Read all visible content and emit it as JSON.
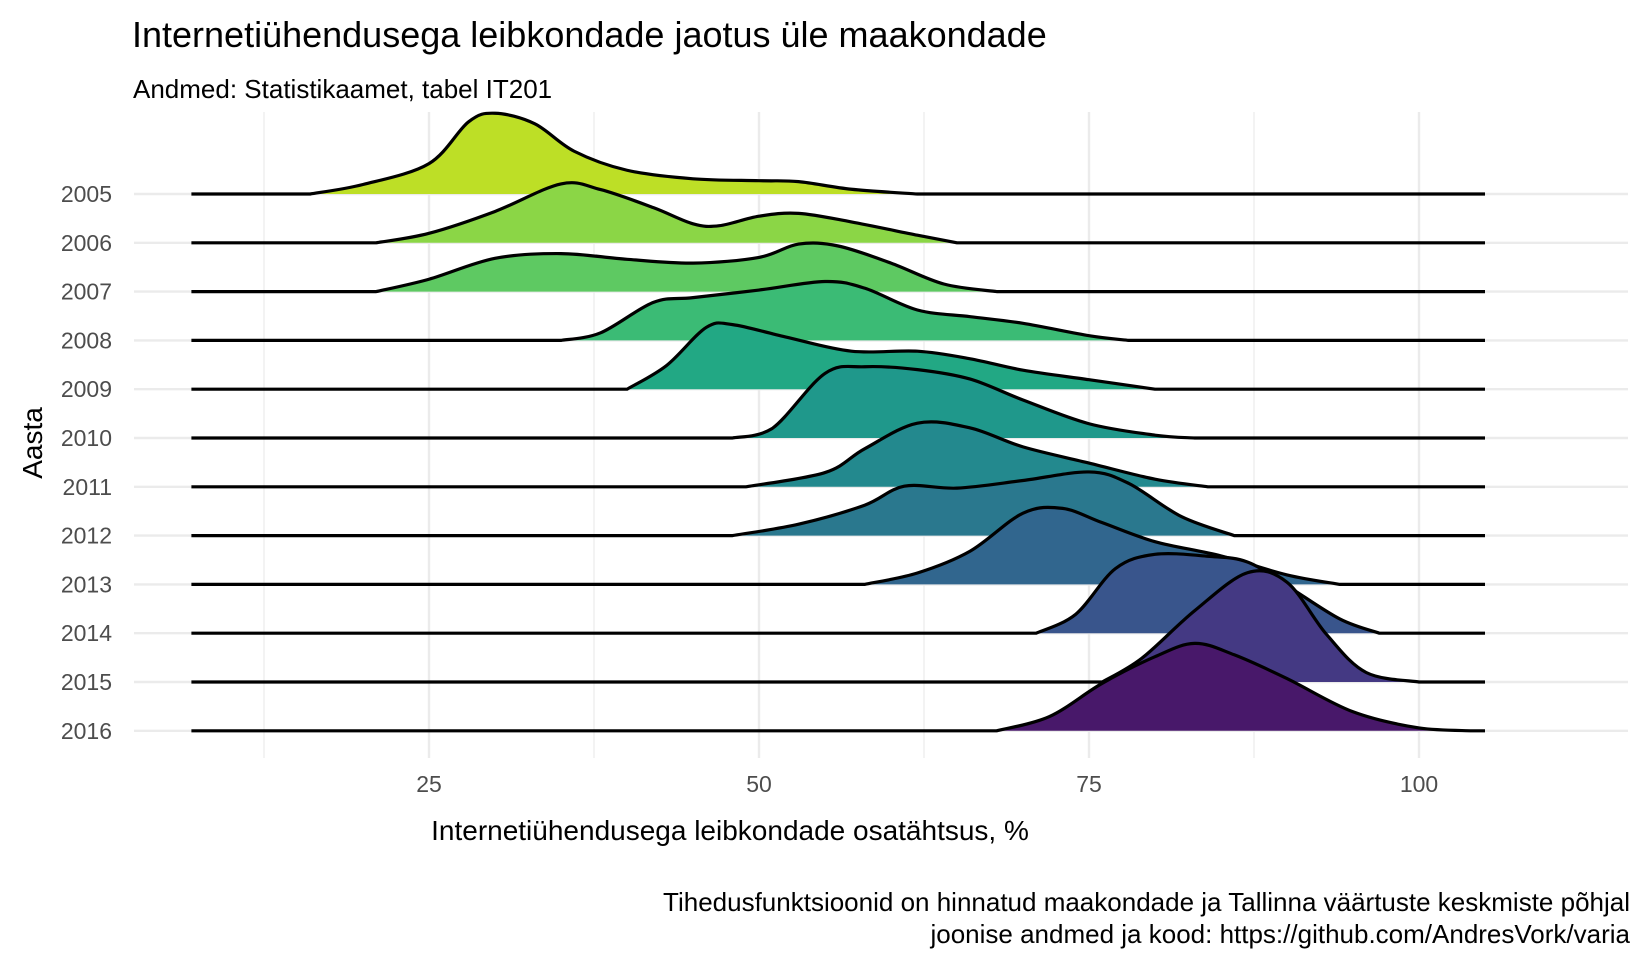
{
  "chart_data": {
    "type": "ridgeline",
    "title": "Internetiühendusega leibkondade jaotus üle maakondade",
    "subtitle": "Andmed: Statistikaamet, tabel IT201",
    "xlabel": "Internetiühendusega leibkondade osatähtsus, %",
    "ylabel": "Aasta",
    "caption": [
      "Tihedusfunktsioonid on hinnatud maakondade ja Tallinna väärtuste keskmiste põhjal",
      "joonise andmed ja kood: https://github.com/AndresVork/varia"
    ],
    "xlim": [
      7,
      105
    ],
    "x_ticks": [
      25,
      50,
      75,
      100
    ],
    "grid": true,
    "legend": "none",
    "categories": [
      "2005",
      "2006",
      "2007",
      "2008",
      "2009",
      "2010",
      "2011",
      "2012",
      "2013",
      "2014",
      "2015",
      "2016"
    ],
    "series": [
      {
        "year": "2005",
        "color": "#bddf26",
        "points": [
          [
            16,
            0
          ],
          [
            20,
            0.1
          ],
          [
            25,
            0.32
          ],
          [
            28,
            0.76
          ],
          [
            30,
            0.85
          ],
          [
            33,
            0.74
          ],
          [
            36,
            0.45
          ],
          [
            40,
            0.25
          ],
          [
            45,
            0.16
          ],
          [
            50,
            0.14
          ],
          [
            53,
            0.13
          ],
          [
            57,
            0.05
          ],
          [
            62,
            0
          ]
        ]
      },
      {
        "year": "2006",
        "color": "#8bd646",
        "points": [
          [
            21,
            0
          ],
          [
            25,
            0.1
          ],
          [
            30,
            0.33
          ],
          [
            35,
            0.62
          ],
          [
            38,
            0.56
          ],
          [
            42,
            0.37
          ],
          [
            45,
            0.2
          ],
          [
            47,
            0.18
          ],
          [
            50,
            0.28
          ],
          [
            53,
            0.31
          ],
          [
            57,
            0.22
          ],
          [
            62,
            0.08
          ],
          [
            65,
            0
          ]
        ]
      },
      {
        "year": "2007",
        "color": "#5ec962",
        "points": [
          [
            21,
            0
          ],
          [
            25,
            0.13
          ],
          [
            30,
            0.35
          ],
          [
            35,
            0.4
          ],
          [
            40,
            0.34
          ],
          [
            45,
            0.3
          ],
          [
            50,
            0.36
          ],
          [
            53,
            0.5
          ],
          [
            56,
            0.48
          ],
          [
            60,
            0.3
          ],
          [
            64,
            0.08
          ],
          [
            68,
            0
          ]
        ]
      },
      {
        "year": "2008",
        "color": "#3bbb75",
        "points": [
          [
            35,
            0
          ],
          [
            38,
            0.08
          ],
          [
            42,
            0.4
          ],
          [
            45,
            0.45
          ],
          [
            50,
            0.53
          ],
          [
            55,
            0.62
          ],
          [
            58,
            0.55
          ],
          [
            62,
            0.32
          ],
          [
            66,
            0.25
          ],
          [
            70,
            0.18
          ],
          [
            75,
            0.05
          ],
          [
            78,
            0
          ]
        ]
      },
      {
        "year": "2009",
        "color": "#22a884",
        "points": [
          [
            40,
            0
          ],
          [
            43,
            0.25
          ],
          [
            46,
            0.65
          ],
          [
            48,
            0.68
          ],
          [
            52,
            0.55
          ],
          [
            57,
            0.4
          ],
          [
            62,
            0.4
          ],
          [
            66,
            0.32
          ],
          [
            70,
            0.2
          ],
          [
            75,
            0.1
          ],
          [
            80,
            0
          ]
        ]
      },
      {
        "year": "2010",
        "color": "#1f988b",
        "points": [
          [
            48,
            0
          ],
          [
            51,
            0.1
          ],
          [
            55,
            0.68
          ],
          [
            58,
            0.75
          ],
          [
            62,
            0.72
          ],
          [
            66,
            0.62
          ],
          [
            70,
            0.4
          ],
          [
            75,
            0.15
          ],
          [
            80,
            0.03
          ],
          [
            83,
            0
          ]
        ]
      },
      {
        "year": "2011",
        "color": "#23898e",
        "points": [
          [
            49,
            0
          ],
          [
            55,
            0.15
          ],
          [
            58,
            0.4
          ],
          [
            62,
            0.67
          ],
          [
            66,
            0.62
          ],
          [
            70,
            0.42
          ],
          [
            75,
            0.25
          ],
          [
            80,
            0.08
          ],
          [
            84,
            0
          ]
        ]
      },
      {
        "year": "2012",
        "color": "#2a788e",
        "points": [
          [
            48,
            0
          ],
          [
            53,
            0.12
          ],
          [
            58,
            0.32
          ],
          [
            61,
            0.52
          ],
          [
            65,
            0.5
          ],
          [
            70,
            0.58
          ],
          [
            75,
            0.67
          ],
          [
            78,
            0.55
          ],
          [
            82,
            0.2
          ],
          [
            86,
            0
          ]
        ]
      },
      {
        "year": "2013",
        "color": "#31668e",
        "points": [
          [
            58,
            0
          ],
          [
            62,
            0.12
          ],
          [
            66,
            0.35
          ],
          [
            70,
            0.75
          ],
          [
            73,
            0.8
          ],
          [
            76,
            0.65
          ],
          [
            80,
            0.45
          ],
          [
            85,
            0.3
          ],
          [
            90,
            0.1
          ],
          [
            94,
            0
          ]
        ]
      },
      {
        "year": "2014",
        "color": "#39558c",
        "points": [
          [
            71,
            0
          ],
          [
            74,
            0.2
          ],
          [
            77,
            0.68
          ],
          [
            80,
            0.83
          ],
          [
            84,
            0.81
          ],
          [
            87,
            0.75
          ],
          [
            90,
            0.5
          ],
          [
            94,
            0.15
          ],
          [
            97,
            0
          ]
        ]
      },
      {
        "year": "2015",
        "color": "#443983",
        "points": [
          [
            76,
            0
          ],
          [
            79,
            0.25
          ],
          [
            83,
            0.75
          ],
          [
            87,
            1.15
          ],
          [
            90,
            1.05
          ],
          [
            93,
            0.5
          ],
          [
            96,
            0.1
          ],
          [
            100,
            0
          ]
        ]
      },
      {
        "year": "2016",
        "color": "#48186a",
        "points": [
          [
            68,
            0
          ],
          [
            72,
            0.15
          ],
          [
            76,
            0.5
          ],
          [
            80,
            0.78
          ],
          [
            83,
            0.92
          ],
          [
            86,
            0.8
          ],
          [
            90,
            0.55
          ],
          [
            95,
            0.2
          ],
          [
            100,
            0.03
          ],
          [
            104,
            0
          ]
        ]
      }
    ]
  }
}
